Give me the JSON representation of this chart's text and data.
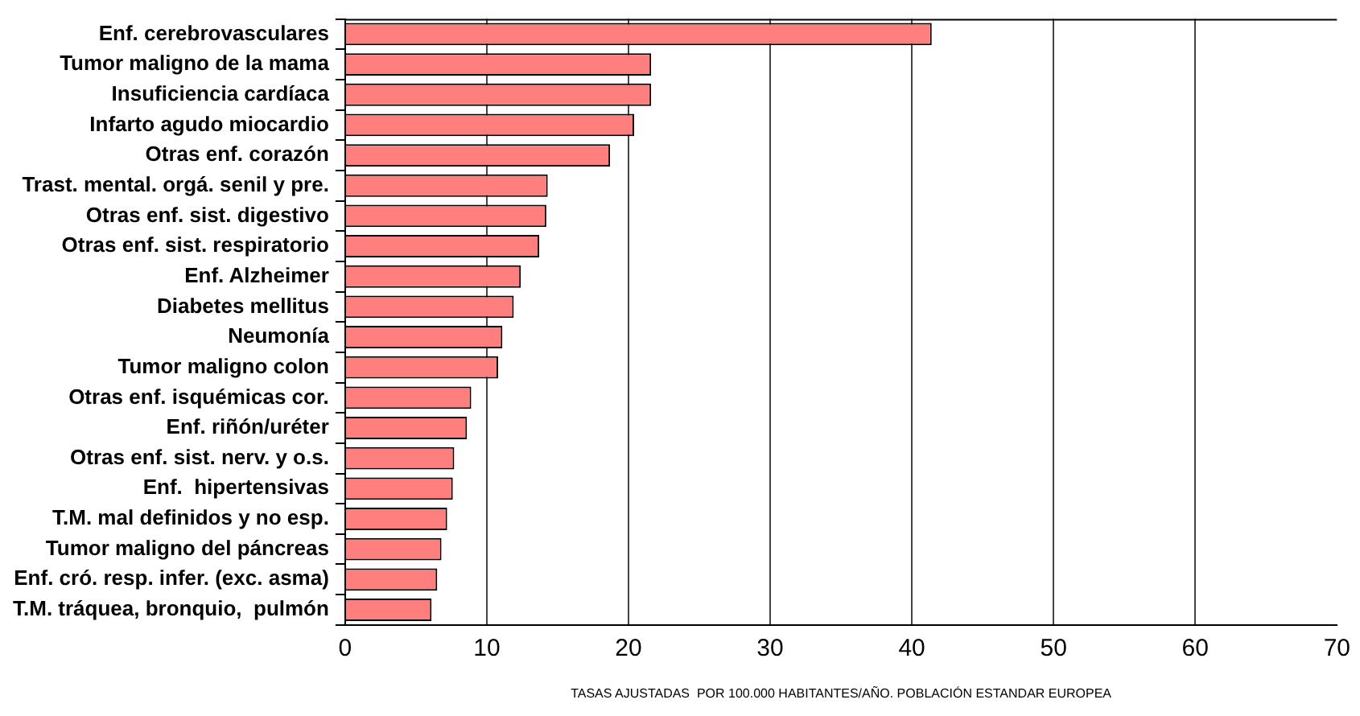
{
  "chart_data": {
    "type": "bar",
    "orientation": "horizontal",
    "categories": [
      "Enf. cerebrovasculares",
      "Tumor maligno de la mama",
      "Insuficiencia cardíaca",
      "Infarto agudo miocardio",
      "Otras enf. corazón",
      "Trast. mental. orgá. senil y pre.",
      "Otras enf. sist. digestivo",
      "Otras enf. sist. respiratorio",
      "Enf. Alzheimer",
      "Diabetes mellitus",
      "Neumonía",
      "Tumor maligno colon",
      "Otras enf. isquémicas cor.",
      "Enf. riñón/uréter",
      "Otras enf. sist. nerv. y o.s.",
      "Enf.  hipertensivas",
      "T.M. mal definidos y no esp.",
      "Tumor maligno del páncreas",
      "Enf. cró. resp. infer. (exc. asma)",
      "T.M. tráquea, bronquio,  pulmón"
    ],
    "values": [
      41.4,
      21.6,
      21.6,
      20.4,
      18.7,
      14.3,
      14.2,
      13.7,
      12.4,
      11.9,
      11.1,
      10.8,
      8.9,
      8.6,
      7.7,
      7.6,
      7.2,
      6.8,
      6.5,
      6.1
    ],
    "color": "#ff7f7f",
    "xlim": [
      0,
      70
    ],
    "xticks": [
      0,
      10,
      20,
      30,
      40,
      50,
      60,
      70
    ],
    "xlabel": "TASAS AJUSTADAS  POR 100.000 HABITANTES/AÑO. POBLACIÓN ESTANDAR EUROPEA",
    "grid": "x",
    "legend": false
  }
}
